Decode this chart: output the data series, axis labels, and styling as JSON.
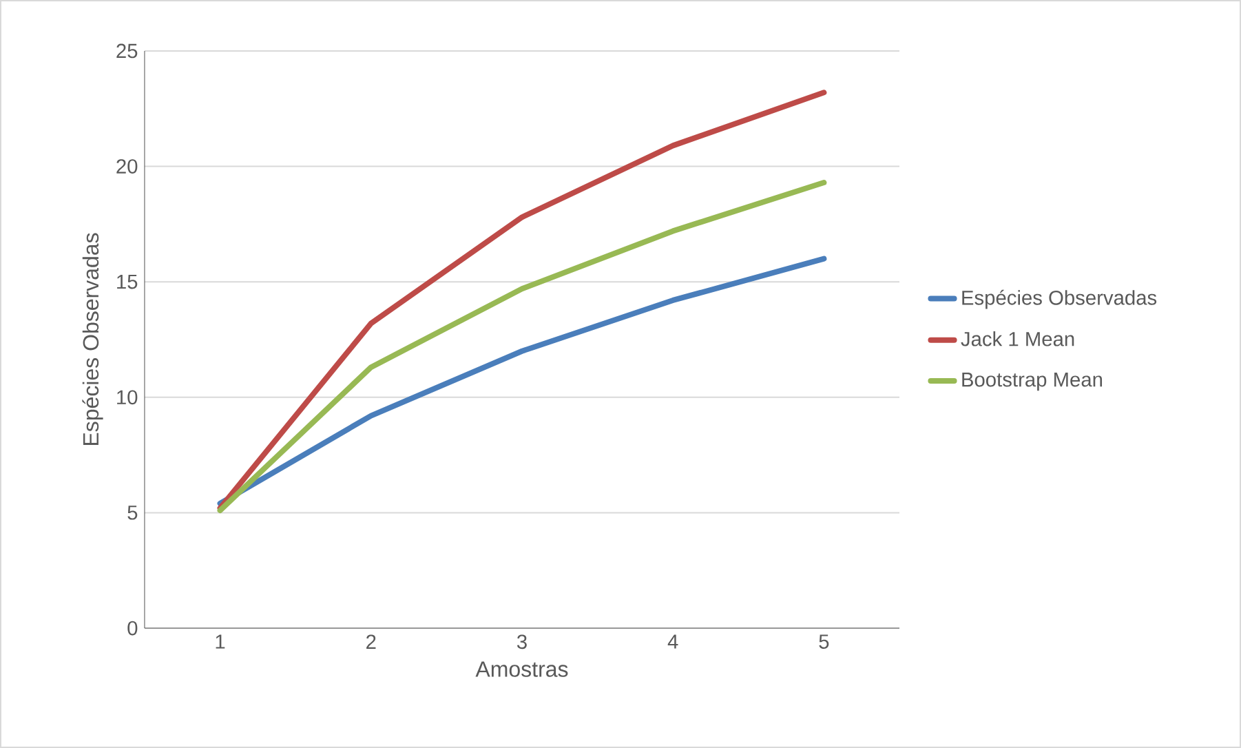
{
  "chart_data": {
    "type": "line",
    "xlabel": "Amostras",
    "ylabel": "Espécies Observadas",
    "categories": [
      "1",
      "2",
      "3",
      "4",
      "5"
    ],
    "series": [
      {
        "name": "Espécies Observadas",
        "color": "#4a7ebb",
        "values": [
          5.4,
          9.2,
          12.0,
          14.2,
          16.0
        ]
      },
      {
        "name": "Jack 1 Mean",
        "color": "#be4b48",
        "values": [
          5.2,
          13.2,
          17.8,
          20.9,
          23.2
        ]
      },
      {
        "name": "Bootstrap Mean",
        "color": "#98b954",
        "values": [
          5.1,
          11.3,
          14.7,
          17.2,
          19.3
        ]
      }
    ],
    "ylim": [
      0,
      25
    ],
    "yticks": [
      0,
      5,
      10,
      15,
      20,
      25
    ],
    "grid": "y",
    "legend": "right",
    "marker": "none",
    "line_style": "solid"
  }
}
